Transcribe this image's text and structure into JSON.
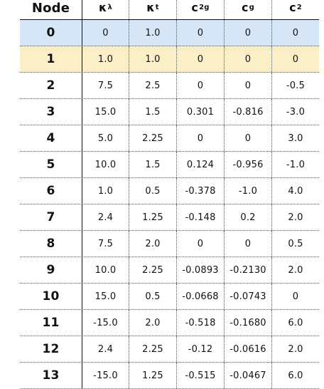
{
  "table": {
    "headers": {
      "node": "Node",
      "k_lambda": "κ",
      "k_lambda_sub": "λ",
      "k_t": "κ",
      "k_t_sub": "t",
      "c2g": "c",
      "c2g_sub": "2g",
      "cg": "c",
      "cg_sub": "g",
      "c2": "c",
      "c2_sub": "2"
    },
    "rows": [
      {
        "node": "0",
        "k_lambda": "0",
        "k_t": "1.0",
        "c2g": "0",
        "cg": "0",
        "c2": "0"
      },
      {
        "node": "1",
        "k_lambda": "1.0",
        "k_t": "1.0",
        "c2g": "0",
        "cg": "0",
        "c2": "0"
      },
      {
        "node": "2",
        "k_lambda": "7.5",
        "k_t": "2.5",
        "c2g": "0",
        "cg": "0",
        "c2": "-0.5"
      },
      {
        "node": "3",
        "k_lambda": "15.0",
        "k_t": "1.5",
        "c2g": "0.301",
        "cg": "-0.816",
        "c2": "-3.0"
      },
      {
        "node": "4",
        "k_lambda": "5.0",
        "k_t": "2.25",
        "c2g": "0",
        "cg": "0",
        "c2": "3.0"
      },
      {
        "node": "5",
        "k_lambda": "10.0",
        "k_t": "1.5",
        "c2g": "0.124",
        "cg": "-0.956",
        "c2": "-1.0"
      },
      {
        "node": "6",
        "k_lambda": "1.0",
        "k_t": "0.5",
        "c2g": "-0.378",
        "cg": "-1.0",
        "c2": "4.0"
      },
      {
        "node": "7",
        "k_lambda": "2.4",
        "k_t": "1.25",
        "c2g": "-0.148",
        "cg": "0.2",
        "c2": "2.0"
      },
      {
        "node": "8",
        "k_lambda": "7.5",
        "k_t": "2.0",
        "c2g": "0",
        "cg": "0",
        "c2": "0.5"
      },
      {
        "node": "9",
        "k_lambda": "10.0",
        "k_t": "2.25",
        "c2g": "-0.0893",
        "cg": "-0.2130",
        "c2": "2.0"
      },
      {
        "node": "10",
        "k_lambda": "15.0",
        "k_t": "0.5",
        "c2g": "-0.0668",
        "cg": "-0.0743",
        "c2": "0"
      },
      {
        "node": "11",
        "k_lambda": "-15.0",
        "k_t": "2.0",
        "c2g": "-0.518",
        "cg": "-0.1680",
        "c2": "6.0"
      },
      {
        "node": "12",
        "k_lambda": "2.4",
        "k_t": "2.25",
        "c2g": "-0.12",
        "cg": "-0.0616",
        "c2": "2.0"
      },
      {
        "node": "13",
        "k_lambda": "-15.0",
        "k_t": "1.25",
        "c2g": "-0.515",
        "cg": "-0.0467",
        "c2": "6.0"
      }
    ],
    "highlight_colors": {
      "row_0": "#d6e6f7",
      "row_1": "#fbefc7"
    }
  }
}
